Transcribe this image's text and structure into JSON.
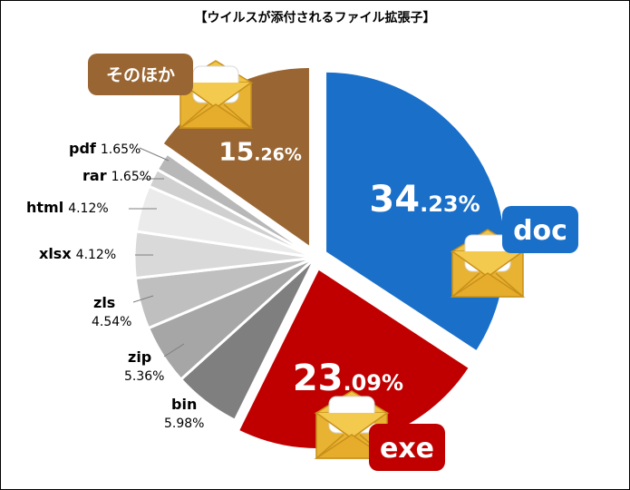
{
  "chart_data": {
    "type": "pie",
    "title": "【ウイルスが添付されるファイル拡張子】",
    "slices": [
      {
        "name": "doc",
        "int": "34",
        "dec": ".23%",
        "value": 34.23,
        "color": "#1a6fc9",
        "explode": true
      },
      {
        "name": "exe",
        "int": "23",
        "dec": ".09%",
        "value": 23.09,
        "color": "#c00000",
        "explode": true
      },
      {
        "name": "bin",
        "pct": "5.98%",
        "value": 5.98,
        "color": "#7f7f7f"
      },
      {
        "name": "zip",
        "pct": "5.36%",
        "value": 5.36,
        "color": "#a6a6a6"
      },
      {
        "name": "zls",
        "pct": "4.54%",
        "value": 4.54,
        "color": "#bfbfbf"
      },
      {
        "name": "xlsx",
        "pct": "4.12%",
        "value": 4.12,
        "color": "#d9d9d9"
      },
      {
        "name": "html",
        "pct": "4.12%",
        "value": 4.12,
        "color": "#ebebeb"
      },
      {
        "name": "rar",
        "pct": "1.65%",
        "value": 1.65,
        "color": "#d0d0d0"
      },
      {
        "name": "pdf",
        "pct": "1.65%",
        "value": 1.65,
        "color": "#b8b8b8"
      },
      {
        "name": "そのほか",
        "int": "15",
        "dec": ".26%",
        "value": 15.26,
        "color": "#996633",
        "explode": true
      }
    ]
  }
}
